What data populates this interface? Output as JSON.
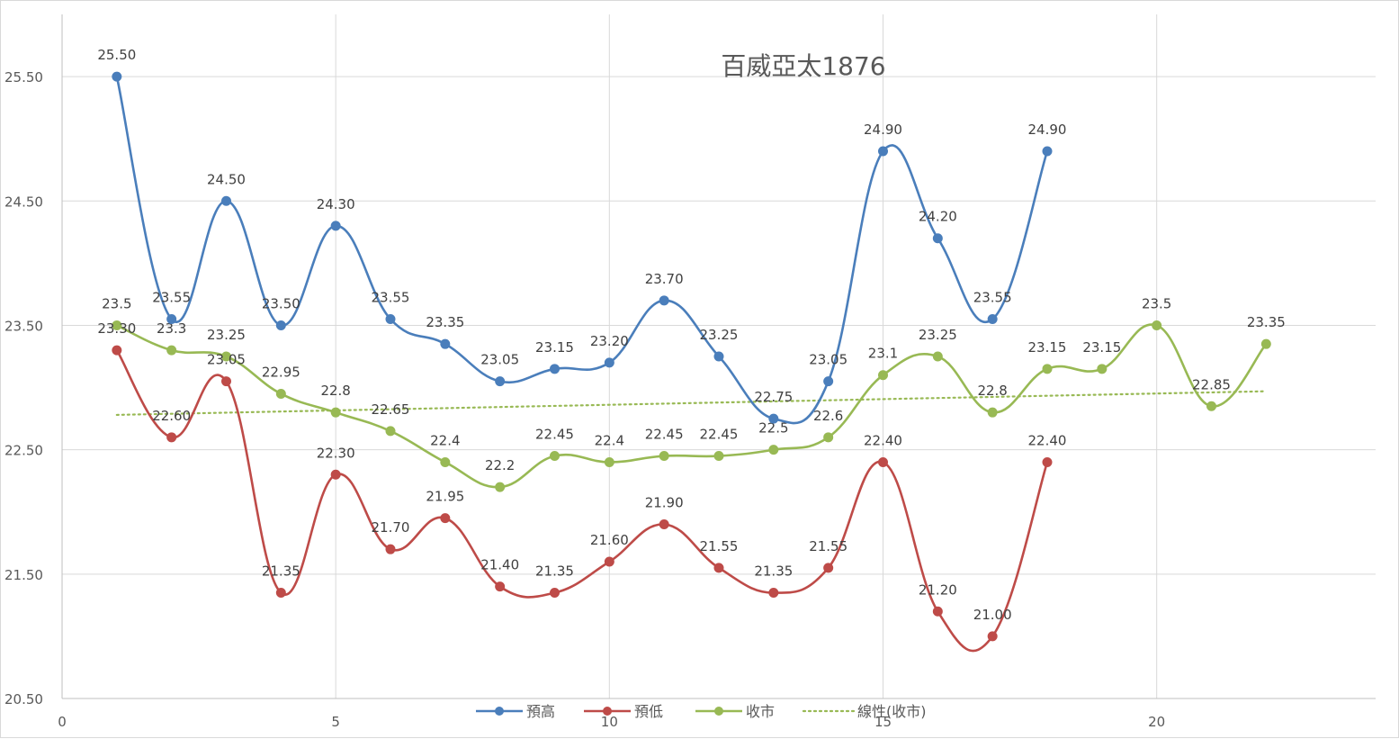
{
  "chart_data": {
    "type": "line",
    "title": "百威亞太1876",
    "xlabel": "",
    "ylabel": "",
    "xlim": [
      0,
      24
    ],
    "ylim": [
      20.5,
      25.5
    ],
    "x_ticks": [
      0,
      5,
      10,
      15,
      20
    ],
    "y_ticks": [
      20.5,
      21.5,
      22.5,
      23.5,
      24.5,
      25.5
    ],
    "y_tick_labels": [
      "20.50",
      "21.50",
      "22.50",
      "23.50",
      "24.50",
      "25.50"
    ],
    "grid": true,
    "legend_position": "bottom",
    "series": [
      {
        "name": "預高",
        "color": "#4a7ebb",
        "style": "smooth",
        "x": [
          1,
          2,
          3,
          4,
          5,
          6,
          7,
          8,
          9,
          10,
          11,
          12,
          13,
          14,
          15,
          16,
          17,
          18
        ],
        "values": [
          25.5,
          23.55,
          24.5,
          23.5,
          24.3,
          23.55,
          23.35,
          23.05,
          23.15,
          23.2,
          23.7,
          23.25,
          22.75,
          23.05,
          24.9,
          24.2,
          23.55,
          24.9
        ],
        "labels": [
          "25.50",
          "23.55",
          "24.50",
          "23.50",
          "24.30",
          "23.55",
          "23.35",
          "23.05",
          "23.15",
          "23.20",
          "23.70",
          "23.25",
          "22.75",
          "23.05",
          "24.90",
          "24.20",
          "23.55",
          "24.90"
        ]
      },
      {
        "name": "預低",
        "color": "#be4b48",
        "style": "smooth",
        "x": [
          1,
          2,
          3,
          4,
          5,
          6,
          7,
          8,
          9,
          10,
          11,
          12,
          13,
          14,
          15,
          16,
          17,
          18
        ],
        "values": [
          23.3,
          22.6,
          23.05,
          21.35,
          22.3,
          21.7,
          21.95,
          21.4,
          21.35,
          21.6,
          21.9,
          21.55,
          21.35,
          21.55,
          22.4,
          21.2,
          21.0,
          22.4
        ],
        "labels": [
          "23.30",
          "22.60",
          "23.05",
          "21.35",
          "22.30",
          "21.70",
          "21.95",
          "21.40",
          "21.35",
          "21.60",
          "21.90",
          "21.55",
          "21.35",
          "21.55",
          "22.40",
          "21.20",
          "21.00",
          "22.40"
        ]
      },
      {
        "name": "收市",
        "color": "#98b954",
        "style": "smooth",
        "x": [
          1,
          2,
          3,
          4,
          5,
          6,
          7,
          8,
          9,
          10,
          11,
          12,
          13,
          14,
          15,
          16,
          17,
          18,
          19,
          20,
          21,
          22
        ],
        "values": [
          23.5,
          23.3,
          23.25,
          22.95,
          22.8,
          22.65,
          22.4,
          22.2,
          22.45,
          22.4,
          22.45,
          22.45,
          22.5,
          22.6,
          23.1,
          23.25,
          22.8,
          23.15,
          23.15,
          23.5,
          22.85,
          23.35
        ],
        "labels": [
          "23.5",
          "23.3",
          "23.25",
          "22.95",
          "22.8",
          "22.65",
          "22.4",
          "22.2",
          "22.45",
          "22.4",
          "22.45",
          "22.45",
          "22.5",
          "22.6",
          "23.1",
          "23.25",
          "22.8",
          "23.15",
          "23.15",
          "23.5",
          "22.85",
          "23.35"
        ]
      },
      {
        "name": "線性(收市)",
        "color": "#98b954",
        "style": "dotted",
        "x": [
          1,
          22
        ],
        "values": [
          22.78,
          22.97
        ],
        "labels": []
      }
    ]
  }
}
